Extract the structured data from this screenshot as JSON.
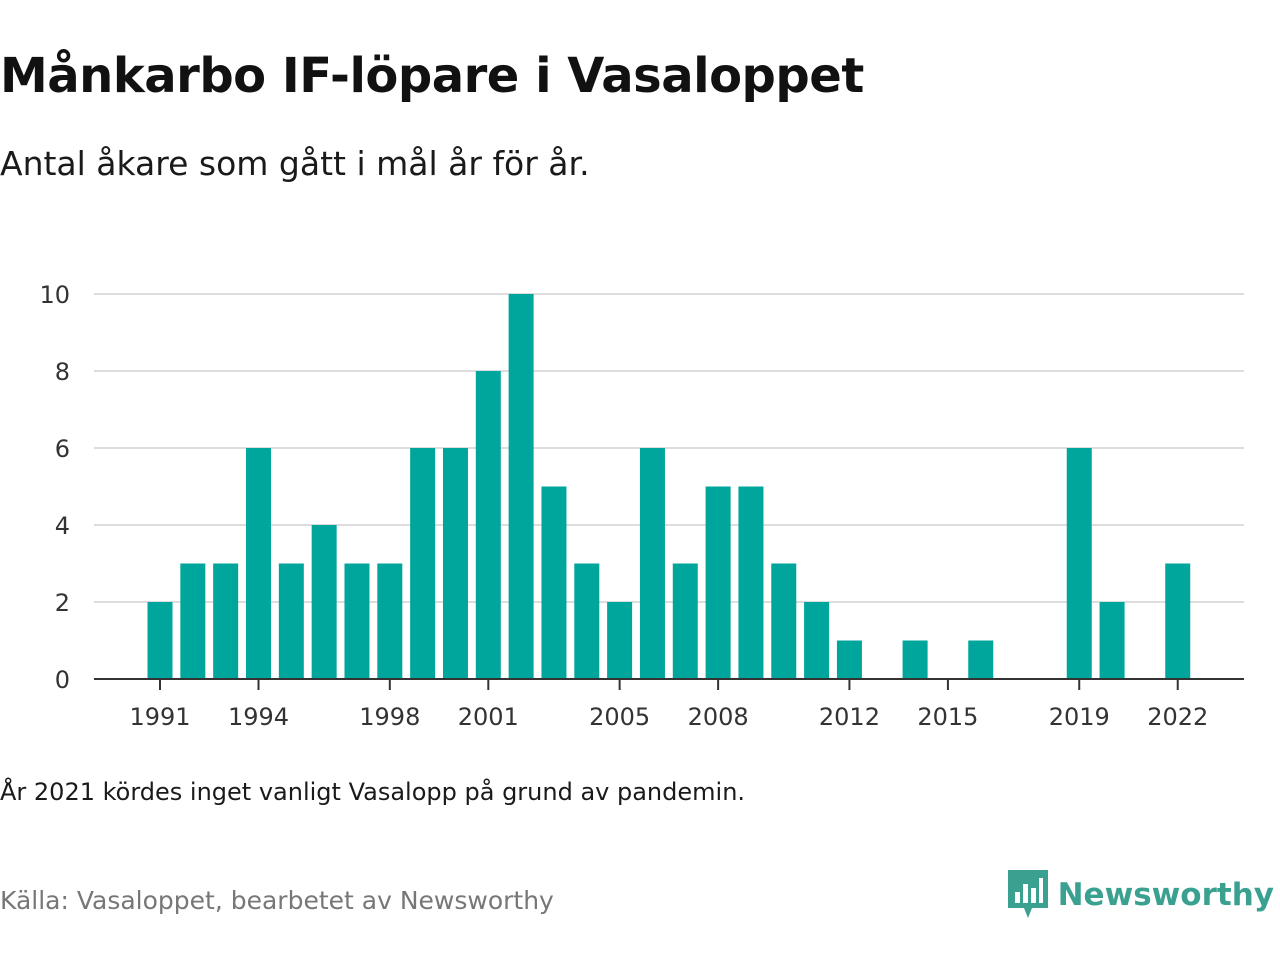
{
  "title": "Månkarbo IF-löpare i Vasaloppet",
  "subtitle": "Antal åkare som gått i mål år för år.",
  "note": "År 2021 kördes inget vanligt Vasalopp på grund av pandemin.",
  "source": "Källa: Vasaloppet, bearbetet av Newsworthy",
  "brand": {
    "name": "Newsworthy",
    "icon": "newsworthy-logo-icon"
  },
  "colors": {
    "bar": "#00a69c",
    "brand": "#3aa191",
    "grid": "#dddddd",
    "axis": "#333333"
  },
  "chart_data": {
    "type": "bar",
    "x": [
      1991,
      1992,
      1993,
      1994,
      1995,
      1996,
      1997,
      1998,
      1999,
      2000,
      2001,
      2002,
      2003,
      2004,
      2005,
      2006,
      2007,
      2008,
      2009,
      2010,
      2011,
      2012,
      2013,
      2014,
      2015,
      2016,
      2017,
      2018,
      2019,
      2020,
      2021,
      2022
    ],
    "values": [
      2,
      3,
      3,
      6,
      3,
      4,
      3,
      3,
      6,
      6,
      8,
      10,
      5,
      3,
      2,
      6,
      3,
      5,
      5,
      3,
      2,
      1,
      0,
      1,
      0,
      1,
      0,
      0,
      6,
      2,
      0,
      3
    ],
    "xticks": [
      1991,
      1994,
      1998,
      2001,
      2005,
      2008,
      2012,
      2015,
      2019,
      2022
    ],
    "yticks": [
      0,
      2,
      4,
      6,
      8,
      10
    ],
    "ylim": [
      0,
      10
    ],
    "grid": true
  }
}
